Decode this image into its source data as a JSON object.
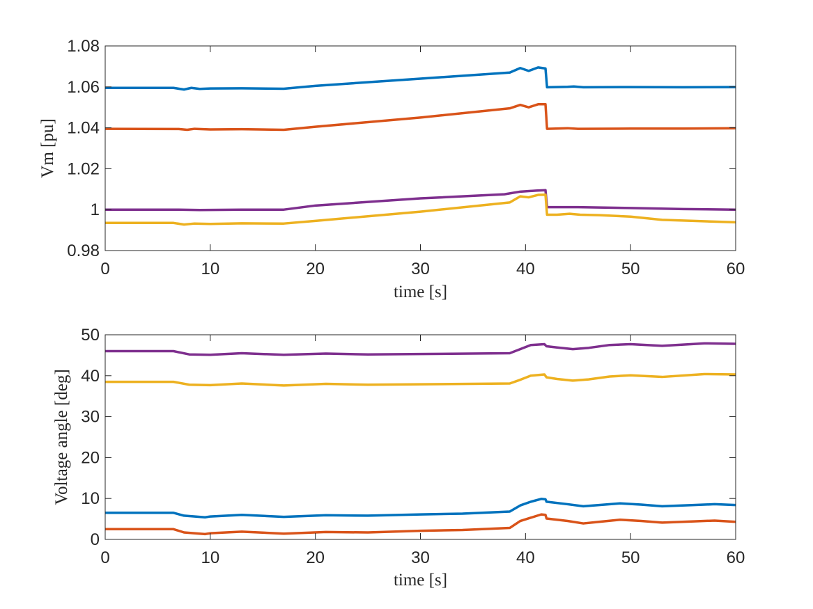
{
  "chart_data": [
    {
      "type": "line",
      "title": "",
      "xlabel": "time [s]",
      "ylabel": "Vm [pu]",
      "xlim": [
        0,
        60
      ],
      "ylim": [
        0.98,
        1.08
      ],
      "xticks": [
        0,
        10,
        20,
        30,
        40,
        50,
        60
      ],
      "xtick_labels": [
        "0",
        "10",
        "20",
        "30",
        "40",
        "50",
        "60"
      ],
      "yticks": [
        0.98,
        1.0,
        1.02,
        1.04,
        1.06,
        1.08
      ],
      "ytick_labels": [
        "0.98",
        "1",
        "1.02",
        "1.04",
        "1.06",
        "1.08"
      ],
      "grid": false,
      "legend": "none",
      "series": [
        {
          "color": "#0072BD",
          "points": [
            [
              0,
              1.0595
            ],
            [
              6.5,
              1.0595
            ],
            [
              7.5,
              1.0587
            ],
            [
              8.2,
              1.0595
            ],
            [
              9,
              1.059
            ],
            [
              10,
              1.0592
            ],
            [
              13,
              1.0593
            ],
            [
              17,
              1.0591
            ],
            [
              20,
              1.0605
            ],
            [
              30,
              1.064
            ],
            [
              38.5,
              1.067
            ],
            [
              39.5,
              1.0692
            ],
            [
              40.3,
              1.0678
            ],
            [
              41.2,
              1.0695
            ],
            [
              41.9,
              1.069
            ],
            [
              42.05,
              1.0598
            ],
            [
              44,
              1.06
            ],
            [
              44.6,
              1.0602
            ],
            [
              45.5,
              1.0598
            ],
            [
              50,
              1.0599
            ],
            [
              55,
              1.0598
            ],
            [
              60,
              1.0599
            ]
          ]
        },
        {
          "color": "#D95319",
          "points": [
            [
              0,
              1.0395
            ],
            [
              7,
              1.0394
            ],
            [
              7.8,
              1.039
            ],
            [
              8.5,
              1.0395
            ],
            [
              10,
              1.0392
            ],
            [
              13,
              1.0393
            ],
            [
              17,
              1.039
            ],
            [
              20,
              1.0405
            ],
            [
              30,
              1.045
            ],
            [
              38.5,
              1.0495
            ],
            [
              39.5,
              1.0512
            ],
            [
              40.3,
              1.05
            ],
            [
              41.2,
              1.0515
            ],
            [
              41.9,
              1.0515
            ],
            [
              42.05,
              1.0395
            ],
            [
              44,
              1.0398
            ],
            [
              45,
              1.0395
            ],
            [
              50,
              1.0396
            ],
            [
              55,
              1.0396
            ],
            [
              60,
              1.0398
            ]
          ]
        },
        {
          "color": "#7E2F8E",
          "points": [
            [
              0,
              1.0
            ],
            [
              7,
              1.0
            ],
            [
              9,
              0.9998
            ],
            [
              13,
              1.0
            ],
            [
              17,
              1.0
            ],
            [
              20,
              1.002
            ],
            [
              30,
              1.0055
            ],
            [
              38,
              1.0075
            ],
            [
              39.5,
              1.0088
            ],
            [
              41,
              1.0093
            ],
            [
              41.9,
              1.0095
            ],
            [
              42.05,
              1.0012
            ],
            [
              45,
              1.0012
            ],
            [
              50,
              1.0008
            ],
            [
              55,
              1.0003
            ],
            [
              60,
              1.0
            ]
          ]
        },
        {
          "color": "#EDB120",
          "points": [
            [
              0,
              0.9935
            ],
            [
              6.5,
              0.9935
            ],
            [
              7.5,
              0.9927
            ],
            [
              8.5,
              0.9932
            ],
            [
              10,
              0.993
            ],
            [
              13,
              0.9933
            ],
            [
              17,
              0.9932
            ],
            [
              20,
              0.9945
            ],
            [
              30,
              0.999
            ],
            [
              38.5,
              1.0035
            ],
            [
              39.5,
              1.0065
            ],
            [
              40.3,
              1.006
            ],
            [
              41.2,
              1.0072
            ],
            [
              41.9,
              1.0073
            ],
            [
              42.05,
              0.9975
            ],
            [
              43,
              0.9975
            ],
            [
              44.2,
              0.998
            ],
            [
              45.2,
              0.9975
            ],
            [
              47,
              0.9973
            ],
            [
              50,
              0.9966
            ],
            [
              53,
              0.995
            ],
            [
              56,
              0.9945
            ],
            [
              60,
              0.9938
            ]
          ]
        }
      ]
    },
    {
      "type": "line",
      "title": "",
      "xlabel": "time [s]",
      "ylabel": "Voltage angle [deg]",
      "xlim": [
        0,
        60
      ],
      "ylim": [
        0,
        50
      ],
      "xticks": [
        0,
        10,
        20,
        30,
        40,
        50,
        60
      ],
      "xtick_labels": [
        "0",
        "10",
        "20",
        "30",
        "40",
        "50",
        "60"
      ],
      "yticks": [
        0,
        10,
        20,
        30,
        40,
        50
      ],
      "ytick_labels": [
        "0",
        "10",
        "20",
        "30",
        "40",
        "50"
      ],
      "grid": false,
      "legend": "none",
      "series": [
        {
          "color": "#7E2F8E",
          "points": [
            [
              0,
              46
            ],
            [
              6.5,
              46
            ],
            [
              8,
              45.2
            ],
            [
              10,
              45.1
            ],
            [
              13,
              45.5
            ],
            [
              17,
              45.1
            ],
            [
              21,
              45.4
            ],
            [
              25,
              45.2
            ],
            [
              30,
              45.3
            ],
            [
              38.5,
              45.5
            ],
            [
              39.5,
              46.5
            ],
            [
              40.5,
              47.5
            ],
            [
              41.8,
              47.7
            ],
            [
              42,
              47.2
            ],
            [
              43,
              46.9
            ],
            [
              44.5,
              46.5
            ],
            [
              46,
              46.8
            ],
            [
              48,
              47.5
            ],
            [
              50,
              47.7
            ],
            [
              53,
              47.3
            ],
            [
              57,
              47.9
            ],
            [
              60,
              47.8
            ]
          ]
        },
        {
          "color": "#EDB120",
          "points": [
            [
              0,
              38.5
            ],
            [
              6.5,
              38.5
            ],
            [
              8,
              37.8
            ],
            [
              10,
              37.7
            ],
            [
              13,
              38.1
            ],
            [
              17,
              37.6
            ],
            [
              21,
              38.0
            ],
            [
              25,
              37.8
            ],
            [
              30,
              37.9
            ],
            [
              38.5,
              38.1
            ],
            [
              39.5,
              39
            ],
            [
              40.5,
              40
            ],
            [
              41.8,
              40.3
            ],
            [
              42,
              39.6
            ],
            [
              43,
              39.2
            ],
            [
              44.5,
              38.8
            ],
            [
              46,
              39.1
            ],
            [
              48,
              39.8
            ],
            [
              50,
              40.1
            ],
            [
              53,
              39.7
            ],
            [
              57,
              40.4
            ],
            [
              60,
              40.3
            ]
          ]
        },
        {
          "color": "#0072BD",
          "points": [
            [
              0,
              6.5
            ],
            [
              6.5,
              6.5
            ],
            [
              7.5,
              5.8
            ],
            [
              9.5,
              5.4
            ],
            [
              10,
              5.6
            ],
            [
              13,
              6.0
            ],
            [
              17,
              5.5
            ],
            [
              21,
              5.9
            ],
            [
              25,
              5.8
            ],
            [
              30,
              6.1
            ],
            [
              34,
              6.3
            ],
            [
              38.5,
              6.8
            ],
            [
              39.5,
              8.3
            ],
            [
              40.5,
              9.2
            ],
            [
              41.5,
              9.9
            ],
            [
              41.9,
              9.8
            ],
            [
              42,
              9.2
            ],
            [
              44,
              8.6
            ],
            [
              45.5,
              8.1
            ],
            [
              47,
              8.4
            ],
            [
              49,
              8.8
            ],
            [
              51,
              8.5
            ],
            [
              53,
              8.1
            ],
            [
              56,
              8.4
            ],
            [
              58,
              8.6
            ],
            [
              60,
              8.4
            ]
          ]
        },
        {
          "color": "#D95319",
          "points": [
            [
              0,
              2.5
            ],
            [
              6.5,
              2.5
            ],
            [
              7.5,
              1.7
            ],
            [
              9.5,
              1.3
            ],
            [
              10,
              1.5
            ],
            [
              13,
              1.9
            ],
            [
              17,
              1.4
            ],
            [
              21,
              1.8
            ],
            [
              25,
              1.7
            ],
            [
              30,
              2.1
            ],
            [
              34,
              2.3
            ],
            [
              38.5,
              2.8
            ],
            [
              39.5,
              4.5
            ],
            [
              40.5,
              5.3
            ],
            [
              41.5,
              6.1
            ],
            [
              41.9,
              6.0
            ],
            [
              42,
              5.1
            ],
            [
              44,
              4.5
            ],
            [
              45.5,
              3.9
            ],
            [
              47,
              4.3
            ],
            [
              49,
              4.8
            ],
            [
              51,
              4.5
            ],
            [
              53,
              4.1
            ],
            [
              56,
              4.4
            ],
            [
              58,
              4.6
            ],
            [
              60,
              4.3
            ]
          ]
        }
      ]
    }
  ]
}
